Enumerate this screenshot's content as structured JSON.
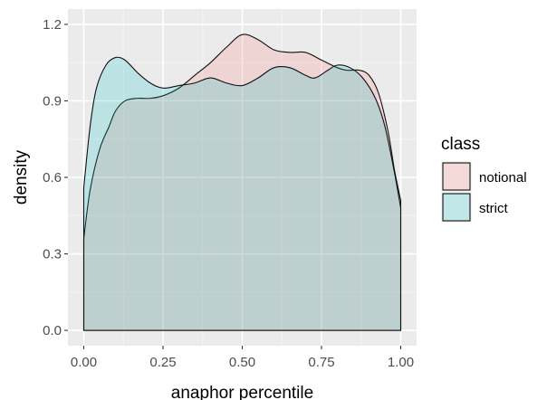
{
  "chart_data": {
    "type": "area",
    "xlabel": "anaphor percentile",
    "ylabel": "density",
    "xlim": [
      0.0,
      1.0
    ],
    "ylim": [
      0.0,
      1.2
    ],
    "x_ticks": [
      "0.00",
      "0.25",
      "0.50",
      "0.75",
      "1.00"
    ],
    "y_ticks": [
      "0.0",
      "0.3",
      "0.6",
      "0.9",
      "1.2"
    ],
    "grid": true,
    "legend": {
      "title": "class",
      "placement": "right",
      "entries": [
        "notional",
        "strict"
      ]
    },
    "series": [
      {
        "name": "notional",
        "color": "#F8766D",
        "points": [
          [
            0.0,
            0.36
          ],
          [
            0.02,
            0.55
          ],
          [
            0.05,
            0.71
          ],
          [
            0.08,
            0.8
          ],
          [
            0.1,
            0.86
          ],
          [
            0.13,
            0.9
          ],
          [
            0.17,
            0.91
          ],
          [
            0.21,
            0.91
          ],
          [
            0.25,
            0.92
          ],
          [
            0.3,
            0.95
          ],
          [
            0.35,
            1.0
          ],
          [
            0.4,
            1.05
          ],
          [
            0.45,
            1.11
          ],
          [
            0.5,
            1.16
          ],
          [
            0.55,
            1.14
          ],
          [
            0.6,
            1.1
          ],
          [
            0.65,
            1.09
          ],
          [
            0.7,
            1.09
          ],
          [
            0.75,
            1.06
          ],
          [
            0.8,
            1.03
          ],
          [
            0.83,
            1.02
          ],
          [
            0.87,
            1.02
          ],
          [
            0.9,
            1.0
          ],
          [
            0.93,
            0.93
          ],
          [
            0.96,
            0.78
          ],
          [
            0.98,
            0.63
          ],
          [
            1.0,
            0.51
          ]
        ]
      },
      {
        "name": "strict",
        "color": "#00BFC4",
        "points": [
          [
            0.0,
            0.56
          ],
          [
            0.02,
            0.8
          ],
          [
            0.04,
            0.95
          ],
          [
            0.07,
            1.04
          ],
          [
            0.1,
            1.07
          ],
          [
            0.13,
            1.06
          ],
          [
            0.17,
            1.01
          ],
          [
            0.21,
            0.97
          ],
          [
            0.25,
            0.95
          ],
          [
            0.3,
            0.96
          ],
          [
            0.35,
            0.97
          ],
          [
            0.4,
            0.99
          ],
          [
            0.45,
            0.97
          ],
          [
            0.5,
            0.96
          ],
          [
            0.55,
            0.99
          ],
          [
            0.6,
            1.03
          ],
          [
            0.65,
            1.03
          ],
          [
            0.7,
            1.0
          ],
          [
            0.73,
            0.99
          ],
          [
            0.77,
            1.02
          ],
          [
            0.8,
            1.04
          ],
          [
            0.84,
            1.03
          ],
          [
            0.88,
            0.99
          ],
          [
            0.92,
            0.91
          ],
          [
            0.95,
            0.8
          ],
          [
            0.98,
            0.62
          ],
          [
            1.0,
            0.48
          ]
        ]
      }
    ]
  }
}
